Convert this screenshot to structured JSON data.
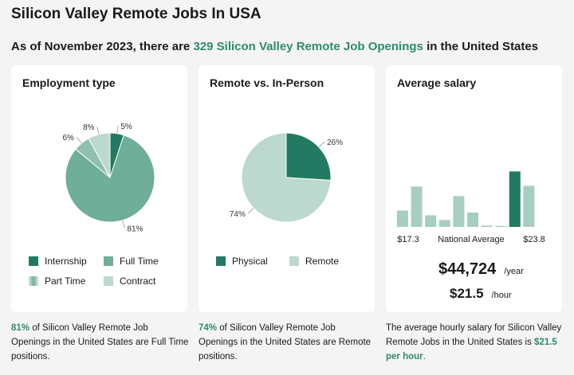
{
  "title": "Silicon Valley Remote Jobs In USA",
  "subtitle": {
    "prefix": "As of November 2023, there are",
    "highlight": "329 Silicon Valley Remote Job Openings",
    "suffix": "in the United States"
  },
  "colors": {
    "accent": "#2e8b6e",
    "dark": "#237a62",
    "mid": "#6fae99",
    "light": "#bcd8cf",
    "lighter": "#a8cdc1"
  },
  "employment": {
    "title": "Employment type",
    "footer": {
      "pct": "81%",
      "text": "of Silicon Valley Remote Job Openings in the United States are Full Time positions."
    }
  },
  "remote": {
    "title": "Remote vs. In-Person",
    "footer": {
      "pct": "74%",
      "text": "of Silicon Valley Remote Job Openings in the United States are Remote positions."
    }
  },
  "salary": {
    "title": "Average salary",
    "low_label": "$17.3",
    "mid_label": "National Average",
    "high_label": "$23.8",
    "yearly": "$44,724",
    "yearly_unit": "/year",
    "hourly": "$21.5",
    "hourly_unit": "/hour",
    "footer": {
      "text": "The average hourly salary for Silicon Valley Remote Jobs in the United States is",
      "highlight": "$21.5 per hour",
      "end": "."
    }
  },
  "chart_data": [
    {
      "type": "pie",
      "title": "Employment type",
      "categories": [
        "Internship",
        "Full Time",
        "Part Time",
        "Contract"
      ],
      "values": [
        5,
        81,
        6,
        8
      ],
      "labels": [
        "5%",
        "81%",
        "6%",
        "8%"
      ],
      "colors": [
        "#237a62",
        "#6fae99",
        "#8fbfb0",
        "#bcd8cf"
      ],
      "legend": "bottom"
    },
    {
      "type": "pie",
      "title": "Remote vs. In-Person",
      "categories": [
        "Physical",
        "Remote"
      ],
      "values": [
        26,
        74
      ],
      "labels": [
        "26%",
        "74%"
      ],
      "colors": [
        "#237a62",
        "#bcd8cf"
      ],
      "legend": "bottom"
    },
    {
      "type": "bar",
      "title": "Average salary",
      "values": [
        2.4,
        5.9,
        1.7,
        1.0,
        4.5,
        2.1,
        0.2,
        0.15,
        8.1,
        6.0
      ],
      "highlight_index": 8,
      "tick_labels": [
        "$17.3",
        "National Average",
        "$23.8"
      ],
      "grid": false
    }
  ]
}
